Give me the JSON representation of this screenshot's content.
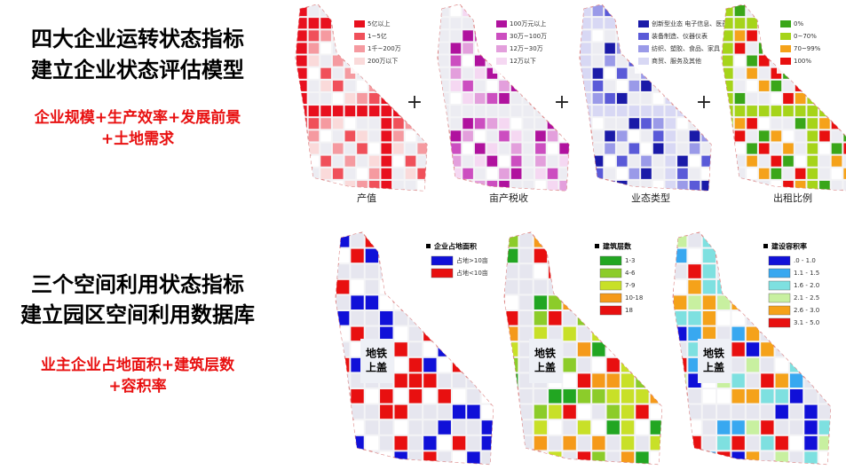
{
  "left": [
    {
      "heading": [
        "四大企业运转状态指标",
        "建立企业状态评估模型"
      ],
      "subtitle": [
        "企业规模+生产效率+发展前景",
        "+土地需求"
      ]
    },
    {
      "heading": [
        "三个空间利用状态指标",
        "建立园区空间利用数据库"
      ],
      "subtitle": [
        "业主企业占地面积+建筑层数",
        "+容积率"
      ]
    }
  ],
  "plus": "+",
  "top_maps": [
    {
      "caption": "产值",
      "legend": [
        {
          "label": "5亿以上",
          "color": "#e8101e"
        },
        {
          "label": "1~5亿",
          "color": "#f0505a"
        },
        {
          "label": "1千~200万",
          "color": "#f59aa0"
        },
        {
          "label": "200万以下",
          "color": "#fadada"
        }
      ]
    },
    {
      "caption": "亩产税收",
      "legend": [
        {
          "label": "100万元以上",
          "color": "#b0129e"
        },
        {
          "label": "30万~100万",
          "color": "#cc4ec0"
        },
        {
          "label": "12万~30万",
          "color": "#e39fdc"
        },
        {
          "label": "12万以下",
          "color": "#f5d8f2"
        }
      ]
    },
    {
      "caption": "业态类型",
      "legend": [
        {
          "label": "创新型业态 电子信息、医药",
          "color": "#1a1aa8"
        },
        {
          "label": "装备制造、仪器仪表",
          "color": "#5a5ad8"
        },
        {
          "label": "纺织、塑胶、食品、家具",
          "color": "#9a9ae8"
        },
        {
          "label": "商贸、服务及其他",
          "color": "#d8d8f4"
        }
      ]
    },
    {
      "caption": "出租比例",
      "legend": [
        {
          "label": "0%",
          "color": "#3aa619"
        },
        {
          "label": "0~70%",
          "color": "#a6d41a"
        },
        {
          "label": "70~99%",
          "color": "#f5a21a"
        },
        {
          "label": "100%",
          "color": "#e81010"
        }
      ]
    }
  ],
  "bottom_maps": [
    {
      "title": "企业占地面积",
      "label": [
        "地铁",
        "上盖"
      ],
      "legend": [
        {
          "label": "占地>10亩",
          "color": "#1010d8"
        },
        {
          "label": "占地<10亩",
          "color": "#e81010"
        }
      ]
    },
    {
      "title": "建筑层数",
      "label": [
        "地铁",
        "上盖"
      ],
      "legend": [
        {
          "label": "1-3",
          "color": "#22a622"
        },
        {
          "label": "4-6",
          "color": "#8ccc2a"
        },
        {
          "label": "7-9",
          "color": "#c8e028"
        },
        {
          "label": "10-18",
          "color": "#f59a1a"
        },
        {
          "label": "18",
          "color": "#e81010"
        }
      ]
    },
    {
      "title": "建设容积率",
      "label": [
        "地铁",
        "上盖"
      ],
      "legend": [
        {
          "label": ".0 - 1.0",
          "color": "#1010d8"
        },
        {
          "label": "1.1 - 1.5",
          "color": "#38a8f0"
        },
        {
          "label": "1.6 - 2.0",
          "color": "#7ee0e0"
        },
        {
          "label": "2.1 - 2.5",
          "color": "#c8f0a0"
        },
        {
          "label": "2.6 - 3.0",
          "color": "#f5a21a"
        },
        {
          "label": "3.1 - 5.0",
          "color": "#e81010"
        }
      ]
    }
  ]
}
